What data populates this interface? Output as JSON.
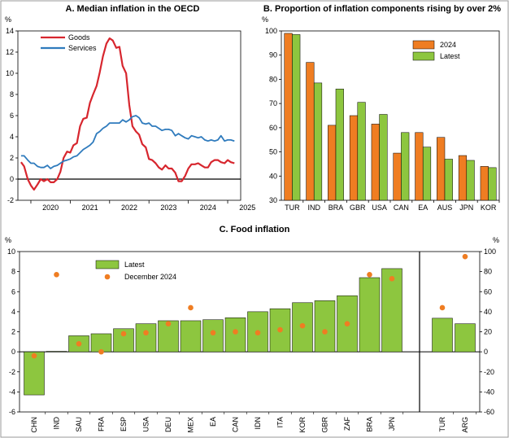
{
  "colors": {
    "goods": "#d7262e",
    "services": "#2f7bbd",
    "orange": "#ef7d22",
    "green": "#8dc63f",
    "dot": "#ef7d22",
    "axis": "#000000"
  },
  "chart_data": [
    {
      "id": "A",
      "type": "line",
      "title": "A. Median inflation in the OECD",
      "unit": "%",
      "ylim": [
        -2,
        14
      ],
      "yticks": [
        -2,
        0,
        2,
        4,
        6,
        8,
        10,
        12,
        14
      ],
      "xlim": [
        2019.67,
        2025.33
      ],
      "xticks": [
        "2020",
        "2021",
        "2022",
        "2023",
        "2024",
        "2025"
      ],
      "grid": false,
      "legend": "top-left",
      "series": [
        {
          "name": "Goods",
          "color": "#d7262e",
          "x": [
            2019.75,
            2019.83,
            2019.92,
            2020.0,
            2020.08,
            2020.17,
            2020.25,
            2020.33,
            2020.42,
            2020.5,
            2020.58,
            2020.67,
            2020.75,
            2020.83,
            2020.92,
            2021.0,
            2021.08,
            2021.17,
            2021.25,
            2021.33,
            2021.42,
            2021.5,
            2021.58,
            2021.67,
            2021.75,
            2021.83,
            2021.92,
            2022.0,
            2022.08,
            2022.17,
            2022.25,
            2022.33,
            2022.42,
            2022.5,
            2022.58,
            2022.67,
            2022.75,
            2022.83,
            2022.92,
            2023.0,
            2023.08,
            2023.17,
            2023.25,
            2023.33,
            2023.42,
            2023.5,
            2023.58,
            2023.67,
            2023.75,
            2023.83,
            2023.92,
            2024.0,
            2024.08,
            2024.17,
            2024.25,
            2024.33,
            2024.42,
            2024.5,
            2024.58,
            2024.67,
            2024.75,
            2024.83,
            2024.92,
            2025.0,
            2025.08,
            2025.17
          ],
          "y": [
            1.6,
            1.2,
            0.0,
            -0.6,
            -1.0,
            -0.5,
            0.0,
            -0.2,
            0.0,
            -0.3,
            -0.3,
            0.0,
            0.7,
            2.0,
            2.6,
            2.5,
            3.2,
            3.4,
            5.0,
            5.7,
            5.8,
            7.2,
            8.0,
            8.8,
            10.1,
            11.6,
            12.8,
            13.3,
            13.1,
            12.4,
            12.5,
            10.7,
            10.0,
            7.0,
            5.0,
            4.5,
            4.2,
            3.3,
            3.0,
            1.9,
            1.8,
            1.5,
            1.1,
            0.9,
            1.3,
            1.0,
            1.0,
            0.6,
            -0.2,
            -0.2,
            0.3,
            1.0,
            1.4,
            1.4,
            1.5,
            1.3,
            1.1,
            1.1,
            1.6,
            1.8,
            1.8,
            1.6,
            1.5,
            1.8,
            1.6,
            1.5
          ],
          "width": 2.2
        },
        {
          "name": "Services",
          "color": "#2f7bbd",
          "x": [
            2019.75,
            2019.83,
            2019.92,
            2020.0,
            2020.08,
            2020.17,
            2020.25,
            2020.33,
            2020.42,
            2020.5,
            2020.58,
            2020.67,
            2020.75,
            2020.83,
            2020.92,
            2021.0,
            2021.08,
            2021.17,
            2021.25,
            2021.33,
            2021.42,
            2021.5,
            2021.58,
            2021.67,
            2021.75,
            2021.83,
            2021.92,
            2022.0,
            2022.08,
            2022.17,
            2022.25,
            2022.33,
            2022.42,
            2022.5,
            2022.58,
            2022.67,
            2022.75,
            2022.83,
            2022.92,
            2023.0,
            2023.08,
            2023.17,
            2023.25,
            2023.33,
            2023.42,
            2023.5,
            2023.58,
            2023.67,
            2023.75,
            2023.83,
            2023.92,
            2024.0,
            2024.08,
            2024.17,
            2024.25,
            2024.33,
            2024.42,
            2024.5,
            2024.58,
            2024.67,
            2024.75,
            2024.83,
            2024.92,
            2025.0,
            2025.08,
            2025.17
          ],
          "y": [
            2.2,
            2.2,
            1.8,
            1.5,
            1.5,
            1.2,
            1.1,
            1.1,
            1.3,
            1.0,
            1.2,
            1.3,
            1.5,
            1.7,
            1.8,
            1.9,
            2.1,
            2.2,
            2.5,
            2.8,
            3.0,
            3.2,
            3.5,
            4.3,
            4.5,
            4.8,
            5.0,
            5.3,
            5.3,
            5.3,
            5.3,
            5.6,
            5.4,
            5.6,
            5.9,
            6.0,
            5.8,
            5.3,
            5.2,
            5.3,
            5.0,
            5.0,
            4.8,
            4.6,
            4.7,
            4.7,
            4.6,
            4.1,
            4.3,
            4.1,
            3.9,
            3.8,
            4.1,
            4.0,
            3.9,
            4.0,
            3.7,
            3.6,
            3.7,
            3.6,
            3.7,
            4.1,
            3.6,
            3.7,
            3.7,
            3.6
          ],
          "width": 1.8
        }
      ]
    },
    {
      "id": "B",
      "type": "bar",
      "title": "B. Proportion of inflation components rising by over 2%",
      "unit": "%",
      "ylim": [
        30,
        100
      ],
      "yticks": [
        30,
        40,
        50,
        60,
        70,
        80,
        90,
        100
      ],
      "categories": [
        "TUR",
        "IND",
        "BRA",
        "GBR",
        "USA",
        "CAN",
        "EA",
        "AUS",
        "JPN",
        "KOR"
      ],
      "grid": false,
      "legend": "top-right",
      "series": [
        {
          "name": "2024",
          "color": "#ef7d22",
          "values": [
            99,
            87,
            61,
            65,
            61.5,
            49.5,
            58,
            56,
            48.5,
            44
          ]
        },
        {
          "name": "Latest",
          "color": "#8dc63f",
          "values": [
            98.5,
            78.5,
            76,
            70.5,
            65.5,
            58,
            52,
            47,
            46.5,
            43.5
          ]
        }
      ]
    },
    {
      "id": "C",
      "type": "bar",
      "title": "C. Food inflation",
      "unit_left": "%",
      "unit_right": "%",
      "ylim": [
        -6,
        10
      ],
      "yticks": [
        -6,
        -4,
        -2,
        0,
        2,
        4,
        6,
        8,
        10
      ],
      "ylim_right": [
        -60,
        100
      ],
      "yticks_right": [
        -60,
        -40,
        -20,
        0,
        20,
        40,
        60,
        80,
        100
      ],
      "categories": [
        "CHN",
        "IND",
        "SAU",
        "FRA",
        "ESP",
        "USA",
        "DEU",
        "MEX",
        "EA",
        "CAN",
        "IDN",
        "ITA",
        "KOR",
        "GBR",
        "ZAF",
        "BRA",
        "JPN",
        "TUR",
        "ARG"
      ],
      "right_axis_categories": [
        "TUR",
        "ARG"
      ],
      "grid": false,
      "legend": "top-left",
      "series": [
        {
          "name": "Latest",
          "type": "bar",
          "color": "#8dc63f",
          "axis": "left",
          "values": [
            null,
            null,
            1.6,
            1.8,
            2.3,
            2.8,
            3.1,
            3.1,
            3.2,
            3.4,
            4.0,
            4.3,
            4.9,
            5.1,
            5.6,
            7.4,
            8.3,
            null,
            null
          ]
        },
        {
          "name": "Latest",
          "type": "bar",
          "color": "#8dc63f",
          "axis": "left",
          "values": [
            -4.3,
            0.05,
            null,
            null,
            null,
            null,
            null,
            null,
            null,
            null,
            null,
            null,
            null,
            null,
            null,
            null,
            null,
            null,
            null
          ]
        },
        {
          "name": "Latest",
          "type": "bar",
          "color": "#8dc63f",
          "axis": "right",
          "values": [
            null,
            null,
            null,
            null,
            null,
            null,
            null,
            null,
            null,
            null,
            null,
            null,
            null,
            null,
            null,
            null,
            null,
            33.5,
            28
          ]
        },
        {
          "name": "December 2024",
          "type": "scatter",
          "color": "#ef7d22",
          "axis": "left",
          "values": [
            -0.4,
            7.7,
            0.8,
            0.0,
            1.8,
            1.9,
            2.8,
            4.4,
            1.9,
            2.0,
            1.9,
            2.2,
            2.6,
            2.0,
            2.8,
            7.7,
            7.3,
            null,
            null
          ]
        },
        {
          "name": "December 2024",
          "type": "scatter",
          "color": "#ef7d22",
          "axis": "right",
          "values": [
            null,
            null,
            null,
            null,
            null,
            null,
            null,
            null,
            null,
            null,
            null,
            null,
            null,
            null,
            null,
            null,
            null,
            44,
            95
          ]
        }
      ],
      "legend_entries": [
        "Latest",
        "December 2024"
      ]
    }
  ]
}
